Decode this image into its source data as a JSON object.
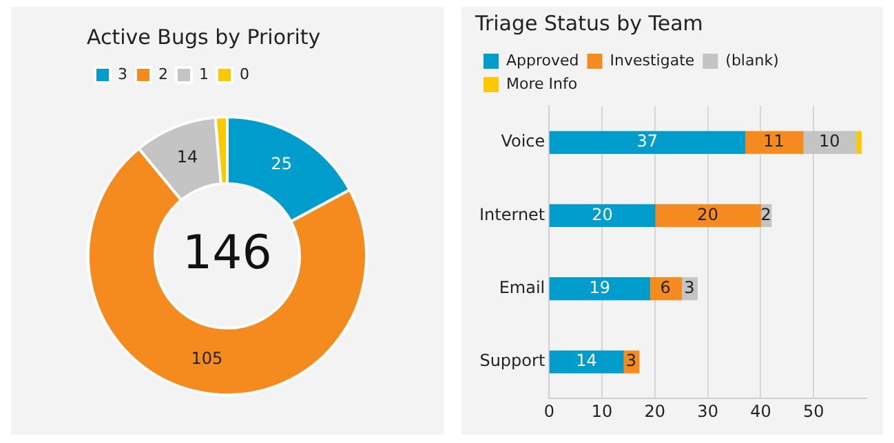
{
  "chart_data": [
    {
      "type": "donut",
      "title": "Active Bugs by Priority",
      "categories": [
        "3",
        "2",
        "1",
        "0"
      ],
      "values": [
        25,
        105,
        14,
        2
      ],
      "colors": [
        "#009ccc",
        "#f58b1f",
        "#c5c4c4",
        "#fcc900"
      ],
      "value_labels": [
        "25",
        "105",
        "14",
        null
      ],
      "legend": "top left",
      "annotations": [
        "146"
      ]
    },
    {
      "type": "bar",
      "orientation": "horizontal",
      "stacked": true,
      "title": "Triage Status by Team",
      "categories": [
        "Voice",
        "Internet",
        "Email",
        "Support"
      ],
      "series": [
        {
          "name": "Approved",
          "color": "#009ccc",
          "values": [
            37,
            20,
            19,
            14
          ],
          "value_labels": [
            "37",
            "20",
            "19",
            "14"
          ]
        },
        {
          "name": "Investigate",
          "color": "#f58b1f",
          "values": [
            11,
            20,
            6,
            3
          ],
          "value_labels": [
            "11",
            "20",
            "6",
            "3"
          ]
        },
        {
          "name": "(blank)",
          "color": "#c5c4c4",
          "values": [
            10,
            2,
            3,
            null
          ],
          "value_labels": [
            "10",
            "2",
            "3",
            null
          ]
        },
        {
          "name": "More Info",
          "color": "#fcc900",
          "values": [
            1,
            null,
            null,
            null
          ],
          "value_labels": [
            null,
            null,
            null,
            null
          ]
        }
      ],
      "xlim": [
        0,
        60
      ],
      "xticks": [
        0,
        10,
        20,
        30,
        40,
        50
      ],
      "grid": "x",
      "legend": "top left"
    }
  ]
}
